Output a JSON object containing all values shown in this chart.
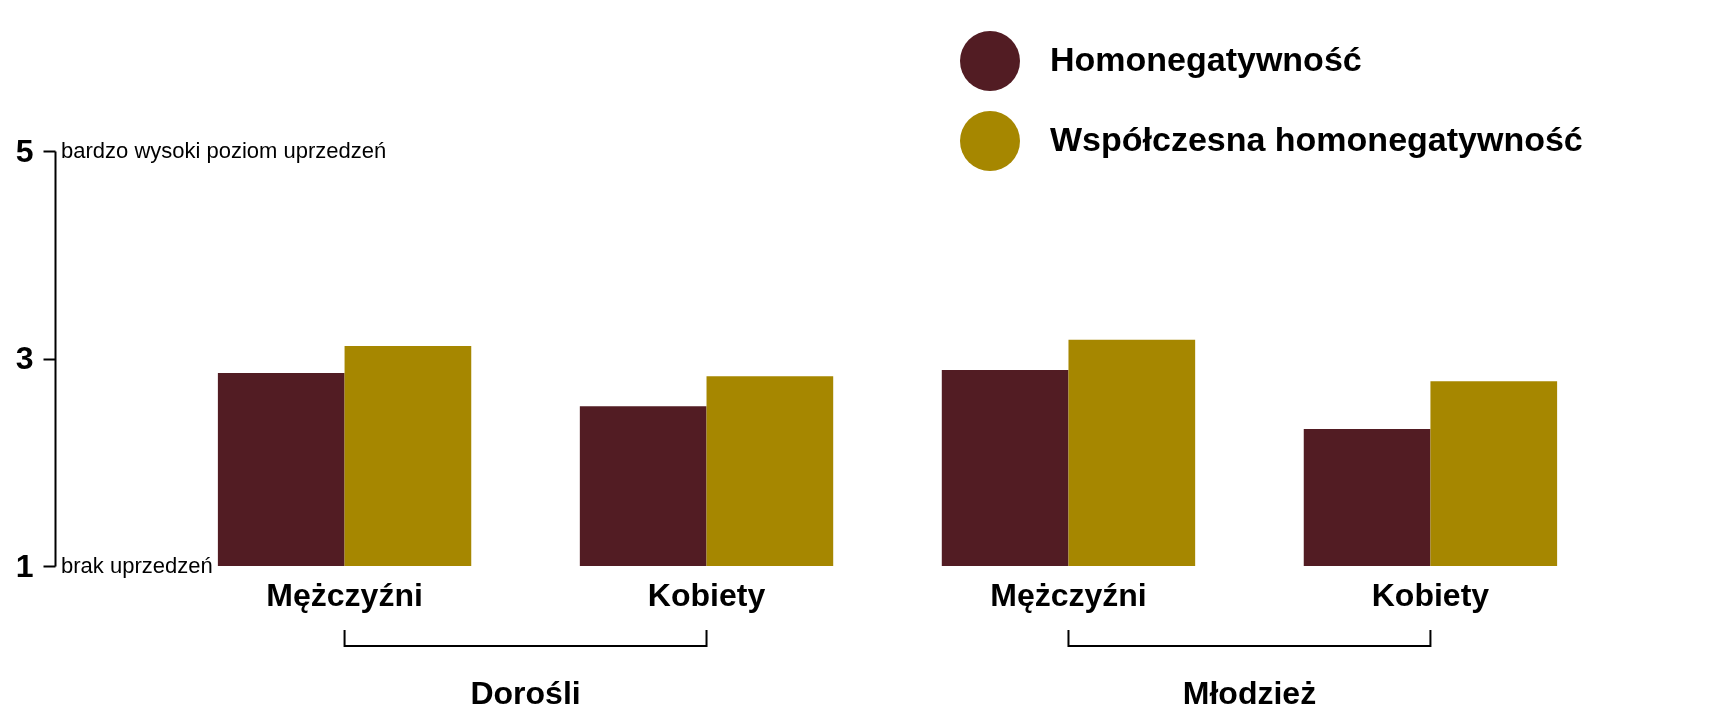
{
  "chart_data": {
    "type": "bar",
    "categories": [
      "Mężczyźni",
      "Kobiety",
      "Mężczyźni",
      "Kobiety"
    ],
    "series": [
      {
        "name": "Homonegatywność",
        "color": "#521c23",
        "values": [
          2.86,
          2.54,
          2.89,
          2.32
        ]
      },
      {
        "name": "Współczesna homonegatywność",
        "color": "#a68700",
        "values": [
          3.12,
          2.83,
          3.18,
          2.78
        ]
      }
    ],
    "ylim": [
      1,
      5
    ],
    "yticks": [
      1,
      3,
      5
    ],
    "legend": "top right",
    "annotations": [
      "bardzo wysoki poziom uprzedzeń",
      "brak uprzedzeń",
      "Dorośli",
      "Młodzież"
    ]
  }
}
